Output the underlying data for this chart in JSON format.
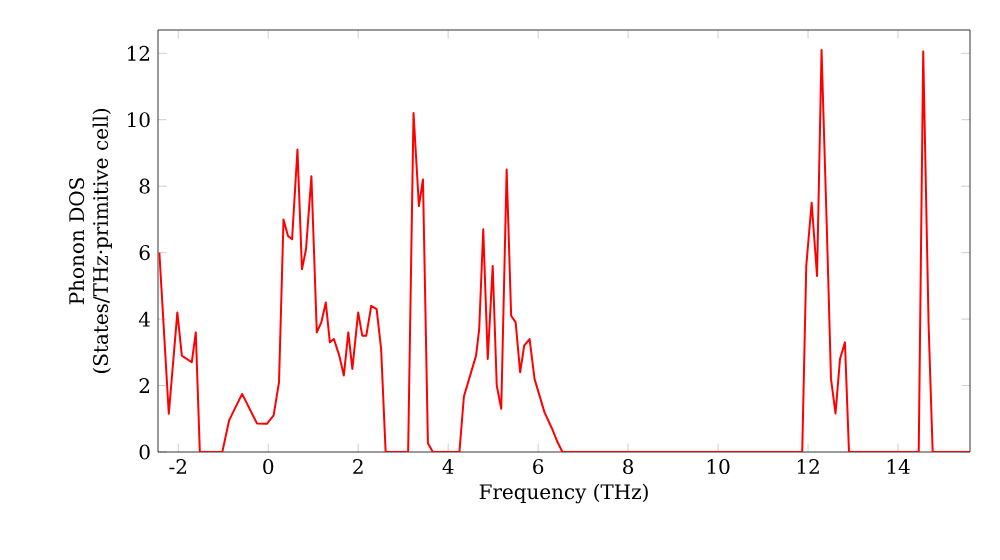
{
  "chart_data": {
    "type": "line",
    "xlabel": "Frequency (THz)",
    "ylabel": "Phonon DOS (States/THz·primitive cell)",
    "x": [
      -2.42,
      -2.21,
      -2.02,
      -1.92,
      -1.7,
      -1.61,
      -1.52,
      -1.02,
      -0.87,
      -0.58,
      -0.25,
      -0.03,
      0.12,
      0.24,
      0.34,
      0.44,
      0.53,
      0.65,
      0.75,
      0.84,
      0.96,
      1.08,
      1.18,
      1.28,
      1.37,
      1.46,
      1.58,
      1.68,
      1.78,
      1.87,
      2.0,
      2.09,
      2.18,
      2.29,
      2.41,
      2.51,
      2.61,
      3.11,
      3.23,
      3.35,
      3.44,
      3.55,
      3.66,
      4.25,
      4.35,
      4.62,
      4.69,
      4.78,
      4.88,
      4.99,
      5.08,
      5.18,
      5.3,
      5.4,
      5.5,
      5.6,
      5.69,
      5.81,
      5.92,
      6.14,
      6.31,
      6.43,
      6.54,
      11.87,
      11.96,
      12.08,
      12.2,
      12.3,
      12.42,
      12.51,
      12.61,
      12.71,
      12.82,
      12.91,
      14.46,
      14.56,
      14.68,
      14.77,
      15.6
    ],
    "values": [
      6.0,
      1.15,
      4.2,
      2.9,
      2.7,
      3.6,
      0,
      0,
      0.95,
      1.75,
      0.86,
      0.85,
      1.1,
      2.1,
      7.0,
      6.5,
      6.4,
      9.1,
      5.5,
      6.1,
      8.3,
      3.6,
      3.9,
      4.5,
      3.3,
      3.4,
      2.9,
      2.3,
      3.6,
      2.5,
      4.2,
      3.5,
      3.5,
      4.4,
      4.3,
      3.1,
      0,
      0,
      10.2,
      7.4,
      8.2,
      0.26,
      0,
      0,
      1.67,
      2.9,
      3.7,
      6.7,
      2.8,
      5.6,
      2.0,
      1.3,
      8.5,
      4.1,
      3.9,
      2.4,
      3.2,
      3.4,
      2.2,
      1.2,
      0.7,
      0.3,
      0,
      0,
      5.6,
      7.5,
      5.3,
      12.1,
      6.6,
      2.2,
      1.16,
      2.8,
      3.3,
      0,
      0,
      12.05,
      3.8,
      0,
      0
    ],
    "color": "#ff0000",
    "xlim": [
      -2.45,
      15.6
    ],
    "ylim": [
      0,
      12.7
    ],
    "xticks": [
      -2,
      0,
      2,
      4,
      6,
      8,
      10,
      12,
      14
    ],
    "yticks": [
      0,
      2,
      4,
      6,
      8,
      10,
      12
    ],
    "grid": false,
    "legend": false,
    "marker": "none",
    "line_style": "solid"
  }
}
